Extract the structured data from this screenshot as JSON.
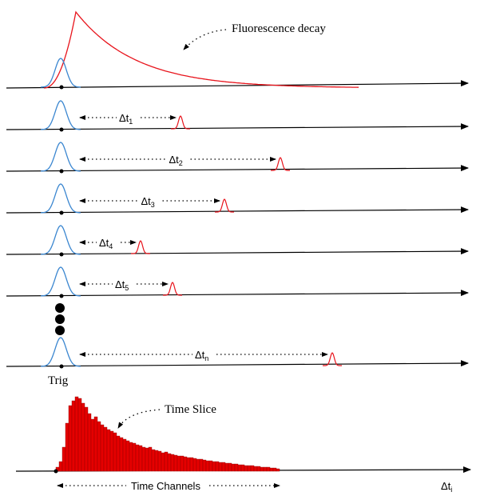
{
  "labels": {
    "fluorescence": "Fluorescence decay",
    "trig": "Trig",
    "time_slice": "Time Slice",
    "time_channels": "Time Channels",
    "delta_t_axis": "Δt",
    "delta_t_axis_sub": "i"
  },
  "rows": [
    {
      "label": "Δt",
      "sub": "1",
      "photon_delay": 0.3
    },
    {
      "label": "Δt",
      "sub": "2",
      "photon_delay": 0.55
    },
    {
      "label": "Δt",
      "sub": "3",
      "photon_delay": 0.41
    },
    {
      "label": "Δt",
      "sub": "4",
      "photon_delay": 0.2
    },
    {
      "label": "Δt",
      "sub": "5",
      "photon_delay": 0.28
    },
    {
      "label": "Δt",
      "sub": "n",
      "photon_delay": 0.68
    }
  ],
  "histogram_counts": [
    5,
    12,
    30,
    60,
    82,
    88,
    93,
    91,
    85,
    80,
    72,
    65,
    68,
    62,
    58,
    55,
    52,
    50,
    48,
    44,
    42,
    40,
    38,
    36,
    35,
    33,
    32,
    30,
    29,
    30,
    27,
    26,
    25,
    23,
    24,
    22,
    21,
    20,
    19,
    19,
    18,
    17,
    17,
    16,
    15,
    15,
    14,
    13,
    13,
    12,
    12,
    11,
    11,
    10,
    10,
    9,
    9,
    8,
    8,
    7,
    7,
    7,
    6,
    6,
    5,
    5,
    5,
    4,
    4,
    3
  ],
  "colors": {
    "laser": "#3a86d0",
    "photon": "#e8141c",
    "bar": "#e50000",
    "axis": "#000000"
  }
}
